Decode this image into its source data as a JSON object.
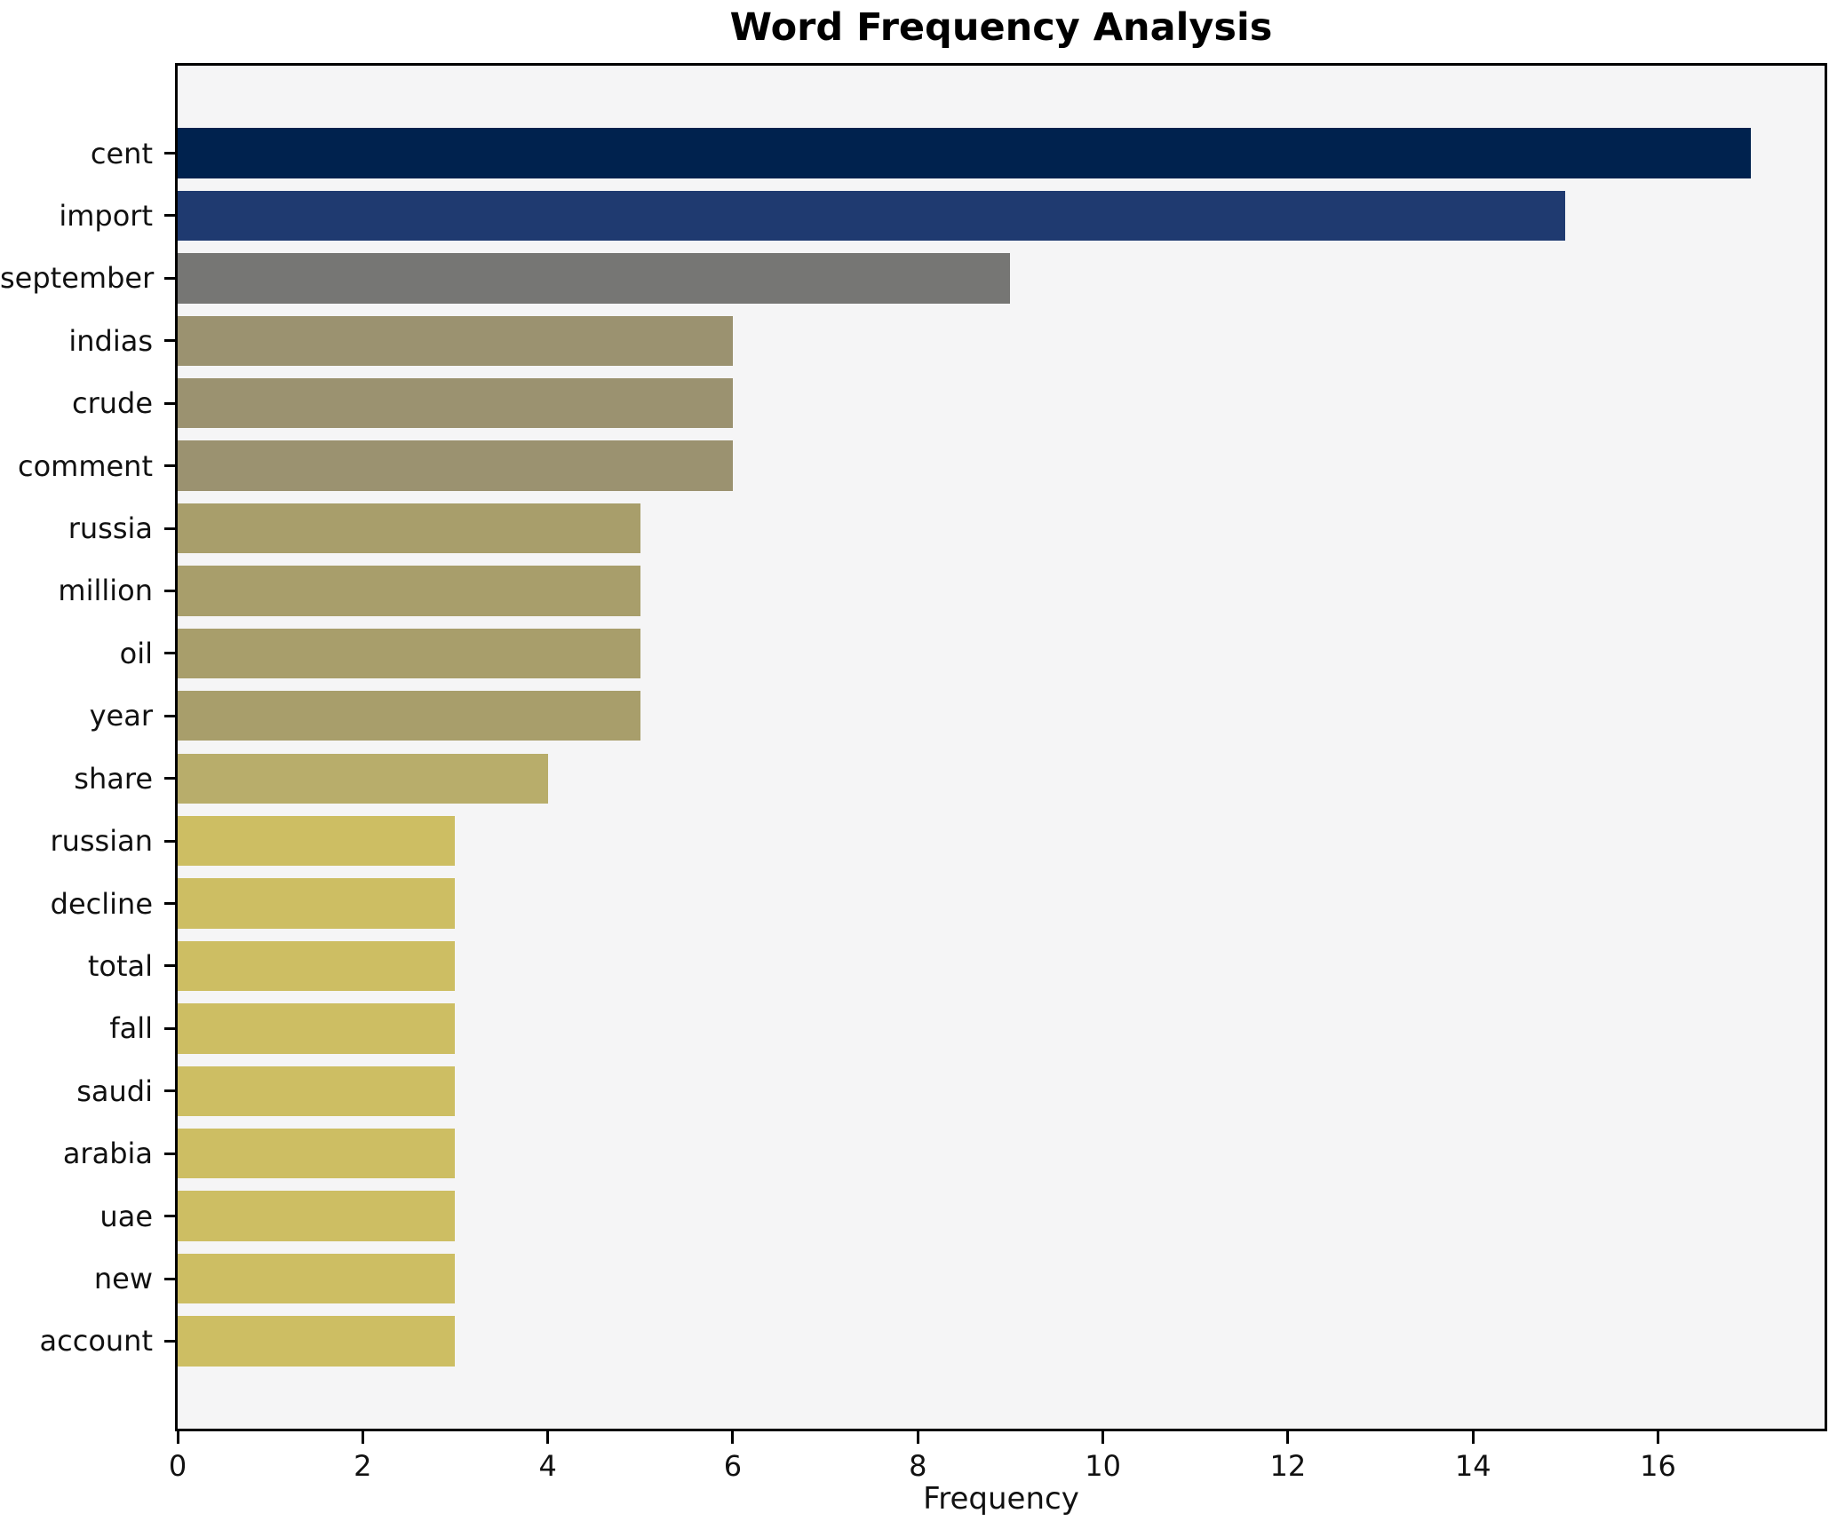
{
  "chart_data": {
    "type": "bar",
    "orientation": "horizontal",
    "title": "Word Frequency Analysis",
    "xlabel": "Frequency",
    "ylabel": "",
    "categories": [
      "cent",
      "import",
      "september",
      "indias",
      "crude",
      "comment",
      "russia",
      "million",
      "oil",
      "year",
      "share",
      "russian",
      "decline",
      "total",
      "fall",
      "saudi",
      "arabia",
      "uae",
      "new",
      "account"
    ],
    "values": [
      17,
      15,
      9,
      6,
      6,
      6,
      5,
      5,
      5,
      5,
      4,
      3,
      3,
      3,
      3,
      3,
      3,
      3,
      3,
      3
    ],
    "bar_colors": [
      "#00224e",
      "#1f3a70",
      "#767674",
      "#9b9270",
      "#9b9270",
      "#9b9270",
      "#a89e6b",
      "#a89e6b",
      "#a89e6b",
      "#a89e6b",
      "#b8ad6b",
      "#cdbe63",
      "#cdbe63",
      "#cdbe63",
      "#cdbe63",
      "#cdbe63",
      "#cdbe63",
      "#cdbe63",
      "#cdbe63",
      "#cdbe63"
    ],
    "x_ticks": [
      0,
      2,
      4,
      6,
      8,
      10,
      12,
      14,
      16
    ],
    "xlim": [
      0,
      17.8
    ],
    "grid": false,
    "legend": "none",
    "plot_background": "#f5f5f6",
    "spine_color": "#000000",
    "text_color": "#111111"
  }
}
